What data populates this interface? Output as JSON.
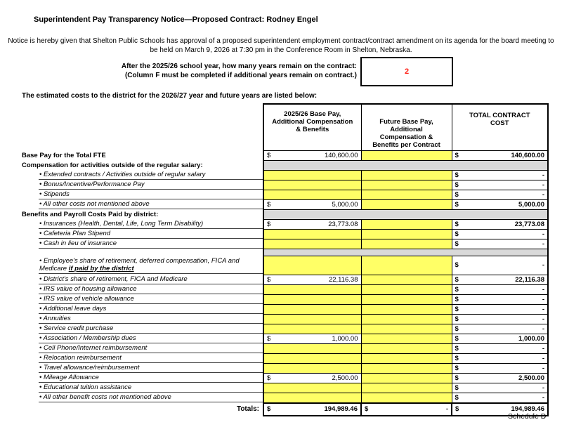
{
  "page": {
    "title": "Superintendent Pay Transparency Notice—Proposed Contract: Rodney Engel",
    "notice": "Notice is hereby given that Shelton Public Schools has approval of a proposed superintendent employment contract/contract amendment on its agenda for the board meeting to be held on March 9, 2026 at 7:30 pm in the Conference Room in Shelton, Nebraska.",
    "question_line1": "After the 2025/26 school year, how many years remain on the contract:",
    "question_line2": "(Column F must be completed if additional years remain on contract.)",
    "years_remaining": "2",
    "estimated_costs_line": "The estimated costs to the district for the 2026/27 year and future years are listed below:",
    "schedule_label": "Schedule D"
  },
  "colors": {
    "highlight_yellow": "#ffff66",
    "section_bar_gray": "#d9d9d9",
    "accent_red": "#ff2016"
  },
  "table": {
    "currency": "$",
    "bullet_char": "•",
    "columns": [
      "",
      "2025/26 Base Pay,  Additional Compensation & Benefits",
      "Future Base Pay, Additional Compensation & Benefits per Contract",
      "TOTAL CONTRACT COST"
    ],
    "rows": [
      {
        "type": "item",
        "bold": true,
        "label": "Base Pay for the Total FTE",
        "v1": "140,600.00",
        "v2": null,
        "v3": "140,600.00"
      },
      {
        "type": "section",
        "label": "Compensation for activities outside of the regular salary:"
      },
      {
        "type": "item",
        "bullet": true,
        "label": "Extended contracts / Activities outside of regular salary",
        "v1": null,
        "v2": null,
        "v3": "-"
      },
      {
        "type": "item",
        "bullet": true,
        "label": "Bonus/Incentive/Performance Pay",
        "v1": null,
        "v2": null,
        "v3": "-"
      },
      {
        "type": "item",
        "bullet": true,
        "label": "Stipends",
        "v1": null,
        "v2": null,
        "v3": "-"
      },
      {
        "type": "item",
        "bullet": true,
        "label": "All other costs not mentioned above",
        "v1": "5,000.00",
        "v2": null,
        "v3": "5,000.00"
      },
      {
        "type": "section",
        "label": "Benefits and Payroll Costs Paid by district:"
      },
      {
        "type": "item",
        "bullet": true,
        "label": "Insurances (Health, Dental, Life, Long Term Disability)",
        "v1": "23,773.08",
        "v2": null,
        "v3": "23,773.08"
      },
      {
        "type": "item",
        "bullet": true,
        "label": "Cafeteria Plan Stipend",
        "v1": null,
        "v2": null,
        "v3": "-"
      },
      {
        "type": "item",
        "bullet": true,
        "label": "Cash in lieu of insurance",
        "v1": null,
        "v2": null,
        "v3": "-"
      },
      {
        "type": "spacer"
      },
      {
        "type": "item",
        "bullet": true,
        "tall": true,
        "label": "Employee's share of retirement, deferred compensation, FICA and Medicare ",
        "label_emphasis": "if paid by the district",
        "v1": null,
        "v2": null,
        "v3": "-"
      },
      {
        "type": "item",
        "bullet": true,
        "label": "District's share of retirement, FICA and Medicare",
        "v1": "22,116.38",
        "v2": null,
        "v3": "22,116.38"
      },
      {
        "type": "item",
        "bullet": true,
        "label": "IRS value of housing allowance",
        "v1": null,
        "v2": null,
        "v3": "-"
      },
      {
        "type": "item",
        "bullet": true,
        "label": "IRS value of vehicle allowance",
        "v1": null,
        "v2": null,
        "v3": "-"
      },
      {
        "type": "item",
        "bullet": true,
        "label": "Additional leave days",
        "v1": null,
        "v2": null,
        "v3": "-"
      },
      {
        "type": "item",
        "bullet": true,
        "label": "Annuities",
        "v1": null,
        "v2": null,
        "v3": "-"
      },
      {
        "type": "item",
        "bullet": true,
        "label": "Service credit purchase",
        "v1": null,
        "v2": null,
        "v3": "-"
      },
      {
        "type": "item",
        "bullet": true,
        "label": "Association / Membership dues",
        "v1": "1,000.00",
        "v2": null,
        "v3": "1,000.00"
      },
      {
        "type": "item",
        "bullet": true,
        "label": "Cell Phone/Internet reimbursement",
        "v1": null,
        "v2": null,
        "v3": "-"
      },
      {
        "type": "item",
        "bullet": true,
        "label": "Relocation reimbursement",
        "v1": null,
        "v2": null,
        "v3": "-"
      },
      {
        "type": "item",
        "bullet": true,
        "label": "Travel allowance/reimbursement",
        "v1": null,
        "v2": null,
        "v3": "-"
      },
      {
        "type": "item",
        "bullet": true,
        "label": "Mileage Allowance",
        "v1": "2,500.00",
        "v2": null,
        "v3": "2,500.00"
      },
      {
        "type": "item",
        "bullet": true,
        "label": "Educational tuition assistance",
        "v1": null,
        "v2": null,
        "v3": "-"
      },
      {
        "type": "item",
        "bullet": true,
        "label": "All other benefit costs not mentioned above",
        "v1": null,
        "v2": null,
        "v3": "-"
      },
      {
        "type": "totals",
        "label": "Totals:",
        "v1": "194,989.46",
        "v2": "-",
        "v3": "194,989.46"
      }
    ]
  }
}
